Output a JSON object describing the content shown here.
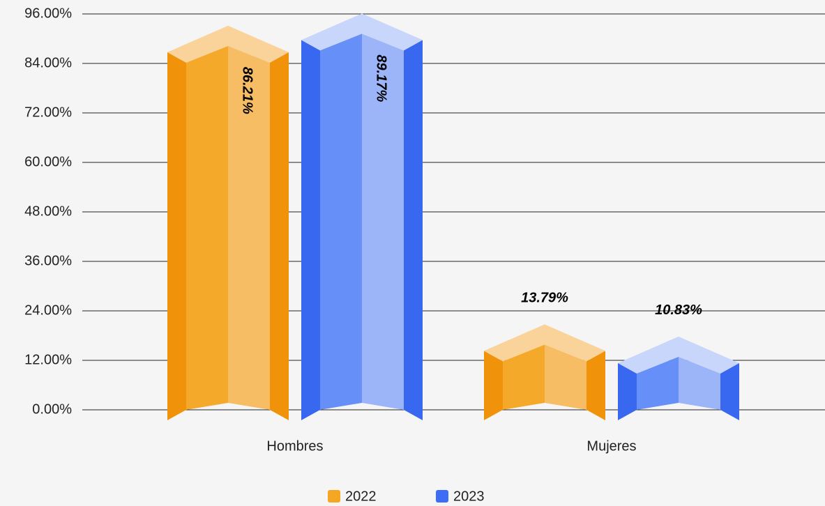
{
  "chart_data": {
    "type": "bar3d",
    "categories": [
      "Hombres",
      "Mujeres"
    ],
    "series": [
      {
        "name": "2022",
        "color": "#f5a623",
        "values": [
          86.21,
          13.79
        ],
        "value_labels": [
          "86.21%",
          "13.79%"
        ]
      },
      {
        "name": "2023",
        "color": "#3b6ef5",
        "values": [
          89.17,
          10.83
        ],
        "value_labels": [
          "89.17%",
          "10.83%"
        ]
      }
    ],
    "ylim": [
      0,
      96
    ],
    "yticks": [
      {
        "value": 0,
        "label": "0.00%"
      },
      {
        "value": 12,
        "label": "12.00%"
      },
      {
        "value": 24,
        "label": "24.00%"
      },
      {
        "value": 36,
        "label": "36.00%"
      },
      {
        "value": 48,
        "label": "48.00%"
      },
      {
        "value": 60,
        "label": "60.00%"
      },
      {
        "value": 72,
        "label": "72.00%"
      },
      {
        "value": 84,
        "label": "84.00%"
      },
      {
        "value": 96,
        "label": "96.00%"
      }
    ],
    "grid": true,
    "legend": "bottom"
  }
}
